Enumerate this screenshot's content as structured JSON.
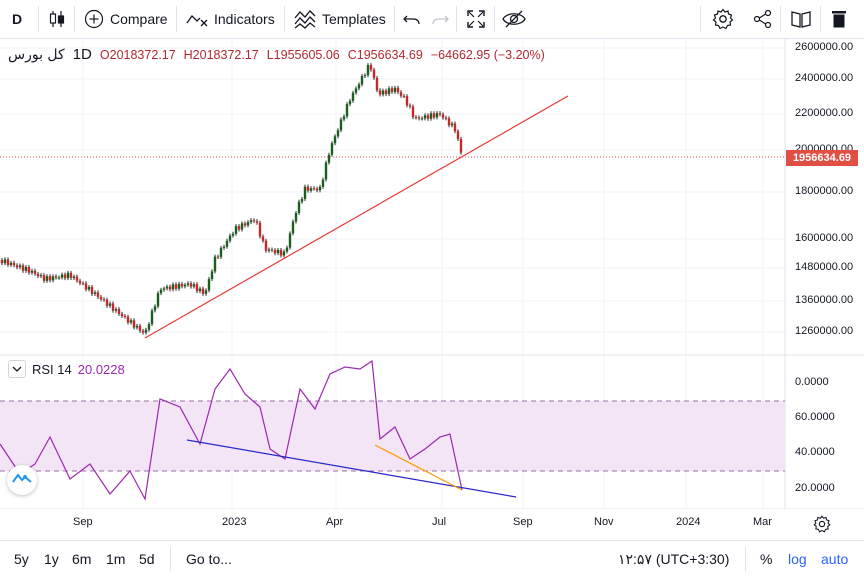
{
  "toolbar": {
    "symbol_short": "D",
    "compare_label": "Compare",
    "indicators_label": "Indicators",
    "templates_label": "Templates"
  },
  "legend": {
    "symbol": "کل بورس",
    "timeframe": "1D",
    "open": "O2018372.17",
    "high": "H2018372.17",
    "low": "L1955605.06",
    "close": "C1956634.69",
    "change": "−64662.95 (−3.20%)"
  },
  "price_axis": {
    "labels": [
      "2600000.00",
      "2400000.00",
      "2200000.00",
      "2000000.00",
      "1800000.00",
      "1600000.00",
      "1480000.00",
      "1360000.00",
      "1260000.00"
    ],
    "last_price": "1956634.69"
  },
  "rsi": {
    "name": "RSI 14",
    "value": "20.0228",
    "labels": [
      "0.0000",
      "60.0000",
      "40.0000",
      "20.0000"
    ]
  },
  "time_axis": {
    "labels": [
      "Sep",
      "2023",
      "Apr",
      "Jul",
      "Sep",
      "Nov",
      "2024",
      "Mar"
    ]
  },
  "bottom": {
    "ranges": [
      "5y",
      "1y",
      "6m",
      "1m",
      "5d"
    ],
    "goto_label": "Go to...",
    "clock": "۱۲:۵۷ (UTC+3:30)",
    "percent_label": "%",
    "log_label": "log",
    "auto_label": "auto"
  },
  "colors": {
    "up": "#26a69a",
    "down": "#ef5350",
    "candle_up_fill": "#1b5e20",
    "candle_down_fill": "#c62828",
    "trendline": "#e53935",
    "rsi_line": "#9c27b0",
    "rsi_band": "#f3e5f5",
    "rsi_divergence_blue": "#2828c8",
    "rsi_divergence_orange": "#ff9800",
    "accent": "#2962ff"
  }
}
